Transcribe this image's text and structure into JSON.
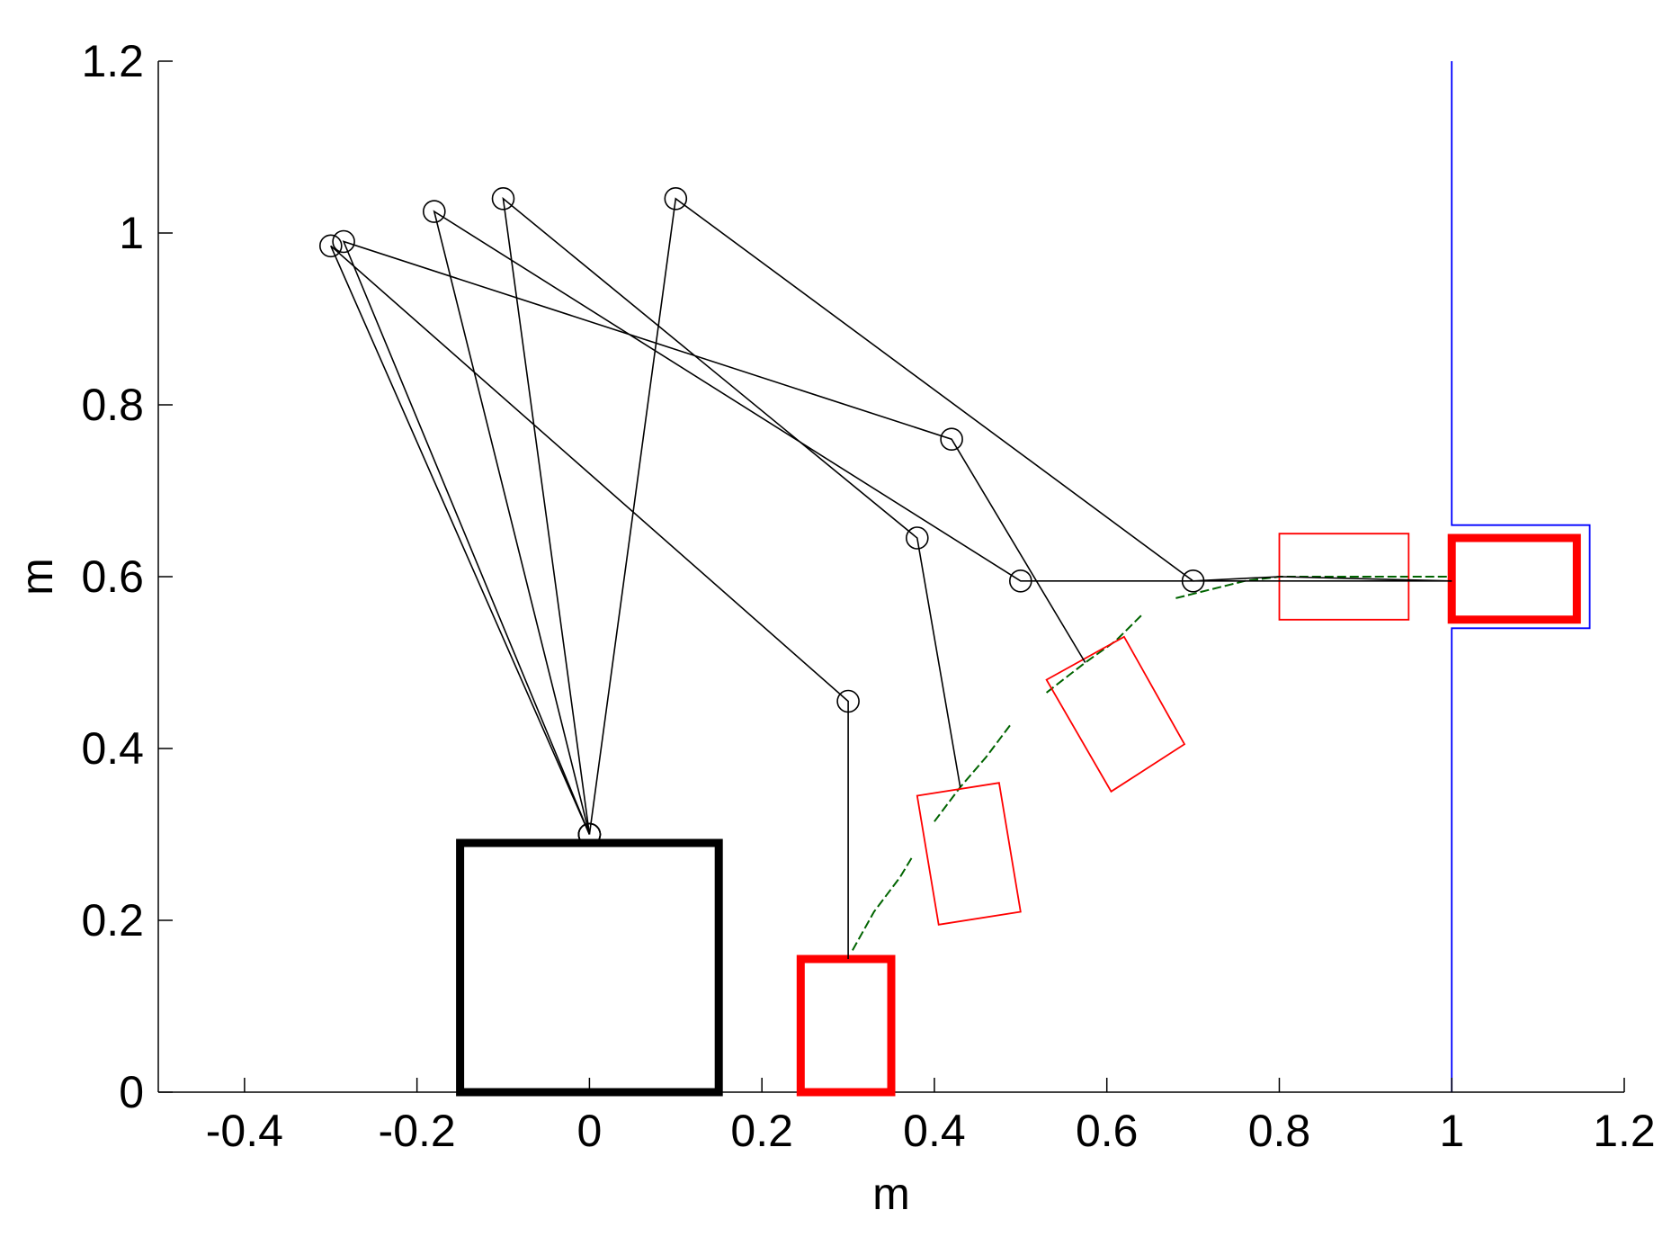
{
  "chart_data": {
    "type": "scatter",
    "title": "",
    "xlabel": "m",
    "ylabel": "m",
    "xlim": [
      -0.5,
      1.2
    ],
    "ylim": [
      0,
      1.2
    ],
    "xticks": [
      -0.4,
      -0.2,
      0,
      0.2,
      0.4,
      0.6,
      0.8,
      1,
      1.2
    ],
    "xtick_labels": [
      "-0.4",
      "-0.2",
      "0",
      "0.2",
      "0.4",
      "0.6",
      "0.8",
      "1",
      "1.2"
    ],
    "yticks": [
      0,
      0.2,
      0.4,
      0.6,
      0.8,
      1,
      1.2
    ],
    "ytick_labels": [
      "0",
      "0.2",
      "0.4",
      "0.6",
      "0.8",
      "1",
      "1.2"
    ],
    "grid": false,
    "legend": "none",
    "colors": {
      "base": "#000000",
      "arm": "#000000",
      "object_bold": "#ff0000",
      "object_thin": "#ff0000",
      "wall": "#0000ff",
      "trace": "#006400"
    },
    "base_box": {
      "corners": [
        [
          -0.15,
          0
        ],
        [
          0.15,
          0
        ],
        [
          0.15,
          0.29
        ],
        [
          -0.15,
          0.29
        ]
      ]
    },
    "arm_configurations": [
      {
        "name": "arm-pose-1",
        "points": [
          [
            0,
            0.3
          ],
          [
            -0.3,
            0.985
          ],
          [
            0.3,
            0.455
          ],
          [
            0.3,
            0.155
          ]
        ]
      },
      {
        "name": "arm-pose-2",
        "points": [
          [
            0,
            0.3
          ],
          [
            -0.1,
            1.04
          ],
          [
            0.38,
            0.645
          ],
          [
            0.43,
            0.355
          ]
        ]
      },
      {
        "name": "arm-pose-3",
        "points": [
          [
            0,
            0.3
          ],
          [
            -0.18,
            1.025
          ],
          [
            0.5,
            0.595
          ],
          [
            0.7,
            0.595
          ],
          [
            1.0,
            0.595
          ]
        ]
      },
      {
        "name": "arm-pose-4",
        "points": [
          [
            0,
            0.3
          ],
          [
            -0.285,
            0.99
          ],
          [
            0.42,
            0.76
          ],
          [
            0.575,
            0.5
          ]
        ]
      },
      {
        "name": "arm-pose-5",
        "points": [
          [
            0,
            0.3
          ],
          [
            0.1,
            1.04
          ],
          [
            0.7,
            0.595
          ],
          [
            0.8,
            0.6
          ],
          [
            1.0,
            0.595
          ]
        ]
      }
    ],
    "objects": [
      {
        "name": "object-start",
        "style": "bold",
        "corners": [
          [
            0.245,
            0
          ],
          [
            0.35,
            0
          ],
          [
            0.35,
            0.155
          ],
          [
            0.245,
            0.155
          ]
        ]
      },
      {
        "name": "object-pose-2",
        "style": "thin",
        "corners": [
          [
            0.38,
            0.345
          ],
          [
            0.475,
            0.36
          ],
          [
            0.5,
            0.21
          ],
          [
            0.405,
            0.195
          ]
        ]
      },
      {
        "name": "object-pose-3",
        "style": "thin",
        "corners": [
          [
            0.53,
            0.48
          ],
          [
            0.62,
            0.53
          ],
          [
            0.69,
            0.405
          ],
          [
            0.605,
            0.35
          ]
        ]
      },
      {
        "name": "object-pose-4",
        "style": "thin",
        "corners": [
          [
            0.8,
            0.65
          ],
          [
            0.95,
            0.65
          ],
          [
            0.95,
            0.55
          ],
          [
            0.8,
            0.55
          ]
        ]
      },
      {
        "name": "object-goal",
        "style": "bold",
        "corners": [
          [
            1.0,
            0.645
          ],
          [
            1.145,
            0.645
          ],
          [
            1.145,
            0.55
          ],
          [
            1.0,
            0.55
          ]
        ]
      }
    ],
    "wall": {
      "points": [
        [
          1.0,
          1.2
        ],
        [
          1.0,
          0.66
        ],
        [
          1.16,
          0.66
        ],
        [
          1.16,
          0.54
        ],
        [
          1.0,
          0.54
        ],
        [
          1.0,
          0
        ]
      ]
    },
    "traces": [
      {
        "name": "trace-1",
        "points": [
          [
            0.305,
            0.165
          ],
          [
            0.33,
            0.21
          ],
          [
            0.36,
            0.25
          ],
          [
            0.375,
            0.275
          ]
        ]
      },
      {
        "name": "trace-2",
        "points": [
          [
            0.4,
            0.315
          ],
          [
            0.43,
            0.355
          ],
          [
            0.46,
            0.39
          ],
          [
            0.49,
            0.43
          ]
        ]
      },
      {
        "name": "trace-3",
        "points": [
          [
            0.53,
            0.465
          ],
          [
            0.575,
            0.5
          ],
          [
            0.61,
            0.525
          ],
          [
            0.64,
            0.555
          ]
        ]
      },
      {
        "name": "trace-4",
        "points": [
          [
            0.68,
            0.575
          ],
          [
            0.72,
            0.585
          ],
          [
            0.76,
            0.595
          ],
          [
            0.8,
            0.6
          ],
          [
            1.0,
            0.6
          ]
        ]
      }
    ]
  }
}
